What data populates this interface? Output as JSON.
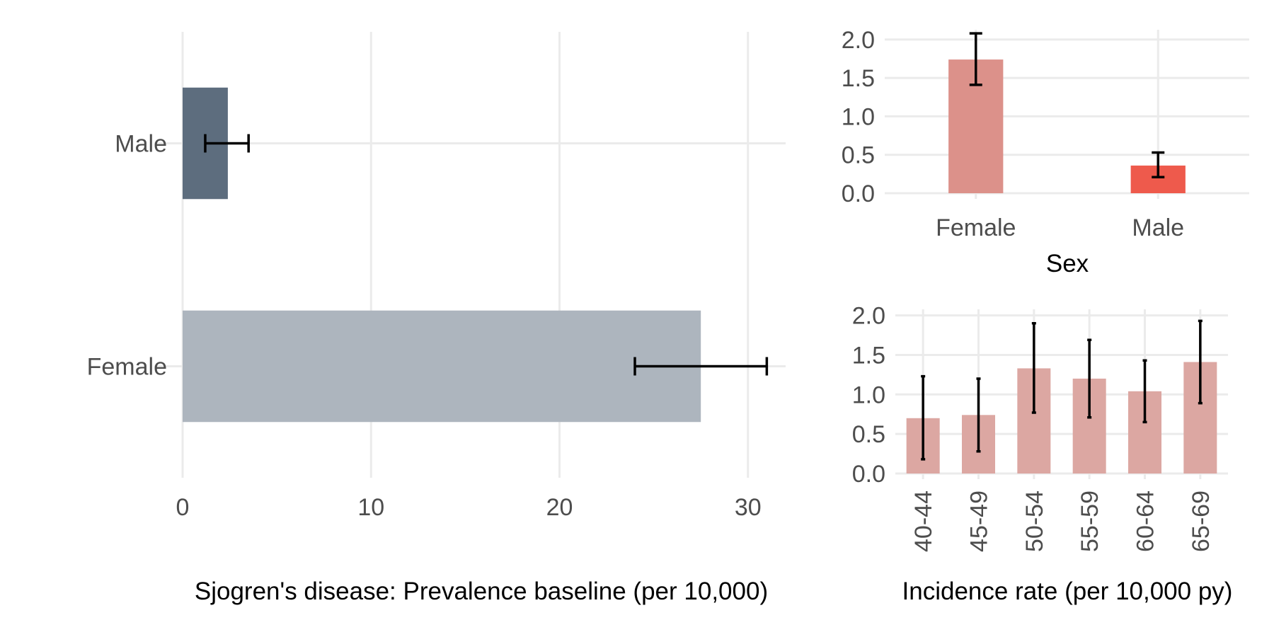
{
  "chart_data": [
    {
      "type": "bar",
      "orientation": "horizontal",
      "categories": [
        "Male",
        "Female"
      ],
      "values": [
        2.4,
        27.5
      ],
      "error_low": [
        1.2,
        24.0
      ],
      "error_high": [
        3.5,
        31.0
      ],
      "colors": [
        "#5d6d7e",
        "#adb5be"
      ],
      "xlabel": "Sjogren's disease: Prevalence baseline (per 10,000)",
      "xlim": [
        0,
        32
      ],
      "xticks": [
        "0",
        "10",
        "20",
        "30"
      ],
      "xtick_values": [
        0,
        10,
        20,
        30
      ],
      "grid": true,
      "legend": "none"
    },
    {
      "type": "bar",
      "categories": [
        "Female",
        "Male"
      ],
      "values": [
        1.74,
        0.36
      ],
      "error_low": [
        1.41,
        0.21
      ],
      "error_high": [
        2.08,
        0.53
      ],
      "colors": [
        "#dc918a",
        "#ee5a4c"
      ],
      "xlabel": "Sex",
      "ylim": [
        0,
        2.1
      ],
      "yticks": [
        "0.0",
        "0.5",
        "1.0",
        "1.5",
        "2.0"
      ],
      "ytick_values": [
        0,
        0.5,
        1.0,
        1.5,
        2.0
      ],
      "grid": true,
      "legend": "none"
    },
    {
      "type": "bar",
      "categories": [
        "40-44",
        "45-49",
        "50-54",
        "55-59",
        "60-64",
        "65-69"
      ],
      "values": [
        0.7,
        0.74,
        1.33,
        1.2,
        1.04,
        1.41
      ],
      "error_low": [
        0.18,
        0.28,
        0.77,
        0.71,
        0.65,
        0.89
      ],
      "error_high": [
        1.23,
        1.2,
        1.9,
        1.69,
        1.43,
        1.93
      ],
      "colors": [
        "#dca7a2"
      ],
      "xlabel": "Incidence rate (per 10,000 py)",
      "ylim": [
        0,
        2.05
      ],
      "yticks": [
        "0.0",
        "0.5",
        "1.0",
        "1.5",
        "2.0"
      ],
      "ytick_values": [
        0,
        0.5,
        1.0,
        1.5,
        2.0
      ],
      "grid": true,
      "legend": "none"
    }
  ]
}
